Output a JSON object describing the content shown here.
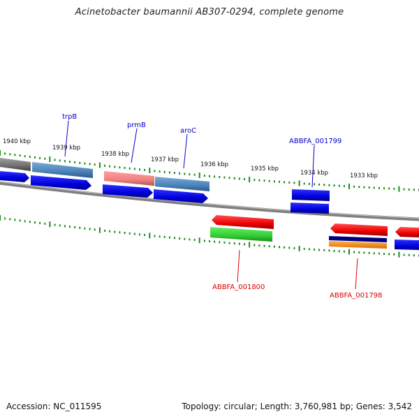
{
  "title": "Acinetobacter baumannii AB307-0294, complete genome",
  "footer": {
    "accession": "Accession: NC_011595",
    "stats": "Topology: circular; Length: 3,760,981 bp; Genes: 3,542"
  },
  "scale_labels": [
    "1940 kbp",
    "1939 kbp",
    "1938 kbp",
    "1937 kbp",
    "1936 kbp",
    "1935 kbp",
    "1934 kbp",
    "1933 kbp"
  ],
  "gene_labels_top": [
    {
      "name": "trpB",
      "color": "#0000cc"
    },
    {
      "name": "prmB",
      "color": "#0000cc"
    },
    {
      "name": "aroC",
      "color": "#0000cc"
    },
    {
      "name": "ABBFA_001799",
      "color": "#0000cc"
    }
  ],
  "gene_labels_bottom": [
    {
      "name": "ABBFA_001800",
      "color": "#dd0000"
    },
    {
      "name": "ABBFA_001798",
      "color": "#dd0000"
    }
  ],
  "colors": {
    "backbone": "#8a8a8a",
    "tick": "#1a8a1a",
    "forward_cds": "#0000ee",
    "reverse_cds": "#ee0000",
    "steelblue": "#4a82b8",
    "salmon": "#f08080",
    "gray": "#777777",
    "green": "#33cc33",
    "orange": "#ff8c00",
    "navy": "#000080"
  }
}
